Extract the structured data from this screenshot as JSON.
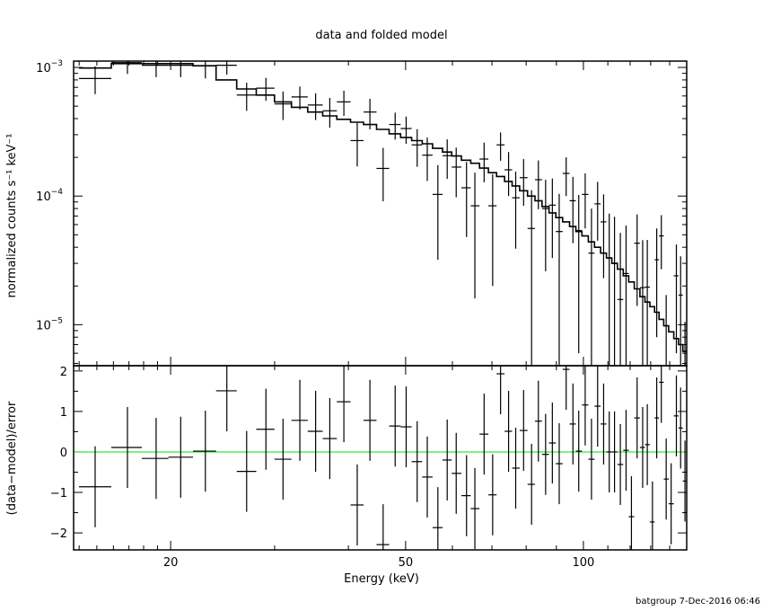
{
  "chart_data": [
    {
      "type": "line",
      "panel": "top",
      "title": "data and folded model",
      "xlabel": "",
      "ylabel": "normalized counts s⁻¹ keV⁻¹",
      "xscale": "log",
      "yscale": "log",
      "xlim": [
        13.7,
        149.6
      ],
      "ylim": [
        4.8e-06,
        0.00112
      ],
      "yticks": [
        {
          "base": "10",
          "exp": "−3",
          "value": 0.001
        },
        {
          "base": "10",
          "exp": "−4",
          "value": 0.0001
        },
        {
          "base": "10",
          "exp": "−5",
          "value": 1e-05
        }
      ],
      "energy_keV": [
        14.9,
        16.9,
        18.9,
        20.8,
        22.9,
        24.9,
        26.9,
        29.0,
        31.0,
        33.1,
        35.2,
        37.2,
        39.3,
        41.4,
        43.5,
        45.8,
        48.0,
        50.1,
        52.3,
        54.4,
        56.7,
        58.8,
        60.9,
        63.4,
        65.5,
        67.9,
        70.2,
        72.4,
        74.7,
        76.8,
        79.2,
        81.7,
        83.9,
        86.3,
        88.6,
        91.0,
        93.5,
        96.0,
        98.2,
        100.7,
        103.2,
        105.7,
        108.2,
        110.6,
        112.9,
        115.5,
        118.1,
        120.6,
        123.3,
        126.0,
        128.3,
        130.9,
        133.1,
        135.5,
        138.1,
        140.8,
        143.7,
        146.1,
        148.6
      ],
      "series": [
        {
          "name": "data",
          "style": "crosses",
          "values": [
            0.00082,
            0.00109,
            0.00104,
            0.00104,
            0.00103,
            0.00104,
            0.00061,
            0.00069,
            0.00052,
            0.00059,
            0.00051,
            0.00046,
            0.00054,
            0.00027,
            0.00045,
            0.000164,
            0.00036,
            0.000335,
            0.00025,
            0.000208,
            0.000103,
            0.000206,
            0.000168,
            0.000116,
            8.4e-05,
            0.000194,
            8.4e-05,
            0.00025,
            0.00016,
            9.7e-05,
            0.000139,
            5.6e-05,
            0.000134,
            8e-05,
            8.5e-05,
            5.3e-05,
            0.00015,
            9.2e-05,
            5.4e-05,
            0.000103,
            3.6e-05,
            8.7e-05,
            6.3e-05,
            3.3e-05,
            3e-05,
            1.57e-05,
            2.5e-05,
            -2.8e-05,
            4.3e-05,
            1.94e-05,
            1.96e-05,
            -2.9e-05,
            3.2e-05,
            4.9e-05,
            -4e-06,
            -1.6e-05,
            2.4e-05,
            1.7e-05,
            -5e-06
          ],
          "errors": [
            0.0002,
            0.0002,
            0.0002,
            0.0002,
            0.00021,
            0.00016,
            0.00015,
            0.00014,
            0.00013,
            0.00012,
            0.00012,
            0.00012,
            0.00012,
            0.0001,
            0.00012,
            7.3e-05,
            8.5e-05,
            8e-05,
            8.1e-05,
            7.7e-05,
            7.1e-05,
            7e-05,
            7e-05,
            6.8e-05,
            6.8e-05,
            6.6e-05,
            6.4e-05,
            6.2e-05,
            6e-05,
            5.8e-05,
            5.5e-05,
            5.5e-05,
            5.5e-05,
            5.4e-05,
            5.2e-05,
            5.1e-05,
            5e-05,
            4.9e-05,
            4.8e-05,
            4.7e-05,
            4.4e-05,
            4.2e-05,
            4e-05,
            4e-05,
            3.9e-05,
            3.6e-05,
            3.4e-05,
            3.1e-05,
            2.9e-05,
            2.6e-05,
            2.6e-05,
            2.5e-05,
            2.4e-05,
            2.2e-05,
            2.1e-05,
            1.9e-05,
            1.8e-05,
            1.7e-05,
            1.55e-05
          ]
        },
        {
          "name": "folded model",
          "style": "step",
          "values": [
            0.00099,
            0.00107,
            0.00107,
            0.00107,
            0.00103,
            0.0008,
            0.00068,
            0.00061,
            0.00054,
            0.00049,
            0.00045,
            0.00042,
            0.000395,
            0.000375,
            0.00036,
            0.00033,
            0.000305,
            0.000285,
            0.00027,
            0.000255,
            0.000235,
            0.00022,
            0.000205,
            0.00019,
            0.00018,
            0.000165,
            0.000152,
            0.000142,
            0.00013,
            0.00012,
            0.00011,
            0.0001,
            9.2e-05,
            8.3e-05,
            7.4e-05,
            6.8e-05,
            6.3e-05,
            5.8e-05,
            5.3e-05,
            4.9e-05,
            4.4e-05,
            4e-05,
            3.6e-05,
            3.3e-05,
            3e-05,
            2.7e-05,
            2.4e-05,
            2.15e-05,
            1.9e-05,
            1.65e-05,
            1.5e-05,
            1.38e-05,
            1.25e-05,
            1.1e-05,
            9.8e-06,
            8.8e-06,
            7.8e-06,
            7e-06,
            6.2e-06
          ]
        }
      ]
    },
    {
      "type": "scatter",
      "panel": "bottom",
      "xlabel": "Energy (keV)",
      "ylabel": "(data−model)/error",
      "xscale": "log",
      "xlim": [
        13.7,
        149.6
      ],
      "ylim": [
        -2.42,
        2.13
      ],
      "xticks": [
        {
          "label": "20",
          "value": 20
        },
        {
          "label": "50",
          "value": 50
        },
        {
          "label": "100",
          "value": 100
        }
      ],
      "yticks": [
        {
          "label": "2",
          "value": 2
        },
        {
          "label": "1",
          "value": 1
        },
        {
          "label": "0",
          "value": 0
        },
        {
          "label": "−1",
          "value": -1
        },
        {
          "label": "−2",
          "value": -2
        }
      ],
      "reference_line": {
        "value": 0,
        "color": "#00e000"
      },
      "series": [
        {
          "name": "residuals",
          "style": "crosses",
          "values": [
            -0.86,
            0.11,
            -0.16,
            -0.13,
            0.02,
            1.51,
            -0.48,
            0.56,
            -0.18,
            0.78,
            0.51,
            0.33,
            1.24,
            -1.31,
            0.78,
            -2.29,
            0.64,
            0.62,
            -0.24,
            -0.62,
            -1.87,
            -0.2,
            -0.53,
            -1.08,
            -1.4,
            0.44,
            -1.06,
            1.93,
            0.51,
            -0.4,
            0.53,
            -0.8,
            0.76,
            -0.06,
            0.22,
            -0.29,
            2.04,
            0.69,
            0.02,
            1.16,
            -0.18,
            1.13,
            0.69,
            0.0,
            0.0,
            -0.31,
            0.04,
            -1.6,
            0.84,
            0.11,
            0.18,
            -1.73,
            0.84,
            1.72,
            -0.67,
            -1.28,
            0.89,
            0.59,
            -0.72
          ]
        }
      ]
    }
  ],
  "footer": "batgroup  7-Dec-2016 06:46"
}
